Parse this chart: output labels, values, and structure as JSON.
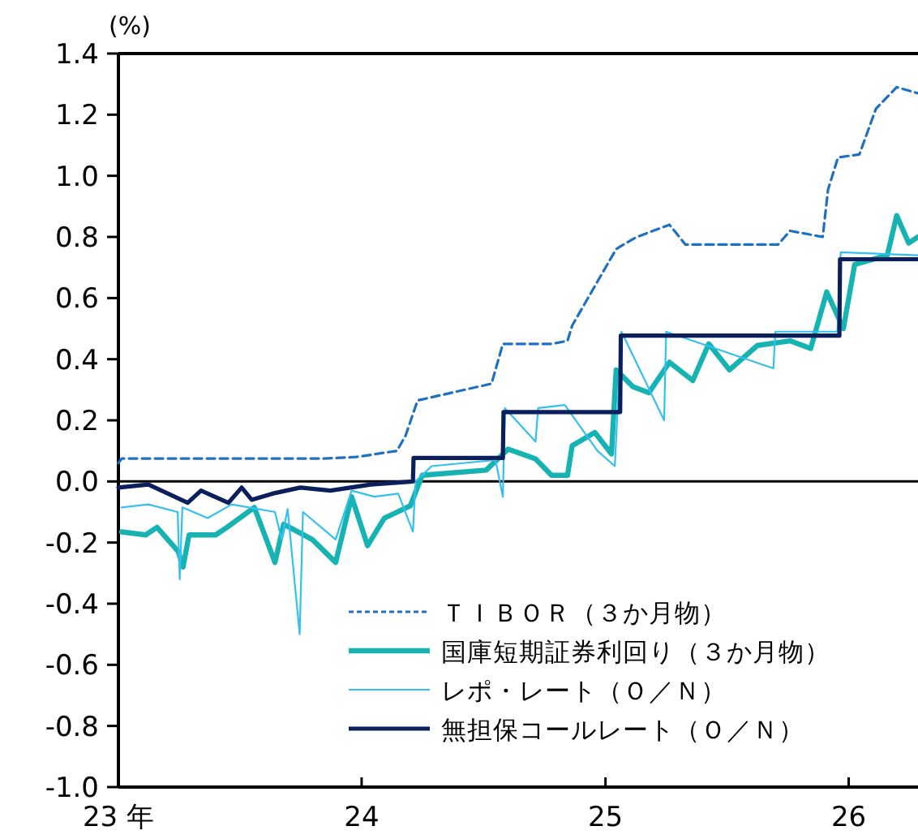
{
  "chart_data": {
    "type": "line",
    "ylabel": "(%)",
    "xlim": [
      "2023-01-01",
      "2026-04-15"
    ],
    "ylim": [
      -1.0,
      1.4
    ],
    "yticks": [
      {
        "value": -1,
        "label": "-1.0"
      },
      -0.8,
      -0.6,
      -0.4,
      -0.2,
      {
        "value": 0,
        "label": "0.0"
      },
      0.2,
      0.4,
      0.6,
      0.8,
      {
        "value": 1,
        "label": "1.0"
      },
      1.2,
      1.4
    ],
    "xticks": [
      {
        "value": "2023-01-01",
        "label": "23 年"
      },
      {
        "value": "2024-01-01",
        "label": "24"
      },
      {
        "value": "2025-01-01",
        "label": "25"
      },
      {
        "value": "2026-01-01",
        "label": "26"
      }
    ],
    "legend": "bottom right",
    "ref_lines": [
      {
        "axis": "y",
        "value": 0,
        "color": "#000000"
      }
    ],
    "series": [
      {
        "name": "ＴＩＢＯＲ（３か月物）",
        "color": "#1f70c1",
        "line_style": "dashed",
        "x": [
          "2023-01-01",
          "2023-01-06",
          "2023-11-05",
          "2023-12-24",
          "2024-02-23",
          "2024-03-07",
          "2024-03-25",
          "2024-07-14",
          "2024-07-31",
          "2024-10-12",
          "2024-11-05",
          "2024-11-12",
          "2024-12-11",
          "2025-01-17",
          "2025-01-24",
          "2025-02-17",
          "2025-04-07",
          "2025-05-01",
          "2025-09-17",
          "2025-10-05",
          "2025-11-23",
          "2025-12-01",
          "2025-12-16",
          "2026-01-17",
          "2026-02-11",
          "2026-03-14",
          "2026-04-15"
        ],
        "values": [
          0.06,
          0.075,
          0.075,
          0.08,
          0.1,
          0.15,
          0.265,
          0.32,
          0.45,
          0.45,
          0.46,
          0.51,
          0.62,
          0.76,
          0.77,
          0.8,
          0.84,
          0.775,
          0.775,
          0.82,
          0.8,
          0.955,
          1.06,
          1.07,
          1.22,
          1.29,
          1.27
        ]
      },
      {
        "name": "国庫短期証券利回り（３か月物）",
        "color": "#17b3b3",
        "x": [
          "2023-01-06",
          "2023-02-11",
          "2023-02-28",
          "2023-04-01",
          "2023-04-08",
          "2023-04-17",
          "2023-05-27",
          "2023-06-13",
          "2023-07-24",
          "2023-08-24",
          "2023-09-06",
          "2023-10-19",
          "2023-11-23",
          "2023-12-17",
          "2024-01-10",
          "2024-02-04",
          "2024-03-14",
          "2024-04-01",
          "2024-07-06",
          "2024-08-08",
          "2024-09-18",
          "2024-10-12",
          "2024-11-05",
          "2024-11-12",
          "2024-12-16",
          "2025-01-10",
          "2025-01-17",
          "2025-02-11",
          "2025-03-07",
          "2025-04-07",
          "2025-05-12",
          "2025-06-05",
          "2025-07-06",
          "2025-08-17",
          "2025-10-05",
          "2025-11-05",
          "2025-11-29",
          "2025-12-24",
          "2026-01-10",
          "2026-02-28",
          "2026-03-14",
          "2026-04-01",
          "2026-04-15"
        ],
        "values": [
          -0.165,
          -0.175,
          -0.15,
          -0.23,
          -0.28,
          -0.175,
          -0.175,
          -0.15,
          -0.085,
          -0.265,
          -0.14,
          -0.19,
          -0.265,
          -0.05,
          -0.21,
          -0.12,
          -0.08,
          0.02,
          0.037,
          0.106,
          0.074,
          0.02,
          0.02,
          0.117,
          0.16,
          0.09,
          0.365,
          0.31,
          0.29,
          0.39,
          0.33,
          0.45,
          0.365,
          0.445,
          0.46,
          0.435,
          0.62,
          0.5,
          0.71,
          0.74,
          0.87,
          0.78,
          0.8
        ]
      },
      {
        "name": "レポ・レート（Ｏ／Ｎ）",
        "color": "#33c0f0",
        "x": [
          "2023-01-06",
          "2023-02-15",
          "2023-03-31",
          "2023-04-03",
          "2023-04-07",
          "2023-05-15",
          "2023-06-20",
          "2023-08-24",
          "2023-09-03",
          "2023-09-12",
          "2023-09-30",
          "2023-10-05",
          "2023-11-23",
          "2023-12-17",
          "2024-01-20",
          "2024-02-25",
          "2024-03-18",
          "2024-03-22",
          "2024-04-15",
          "2024-06-01",
          "2024-07-20",
          "2024-07-31",
          "2024-08-03",
          "2024-09-18",
          "2024-09-22",
          "2024-11-01",
          "2024-12-20",
          "2025-01-15",
          "2025-01-25",
          "2025-03-30",
          "2025-04-02",
          "2025-09-10",
          "2025-09-13",
          "2025-12-15",
          "2025-12-20",
          "2026-04-15"
        ],
        "values": [
          -0.085,
          -0.075,
          -0.1,
          -0.32,
          -0.085,
          -0.12,
          -0.075,
          -0.1,
          -0.19,
          -0.09,
          -0.5,
          -0.1,
          -0.19,
          -0.03,
          -0.05,
          -0.04,
          -0.165,
          0.0,
          0.05,
          0.06,
          0.07,
          -0.05,
          0.24,
          0.13,
          0.24,
          0.25,
          0.1,
          0.05,
          0.49,
          0.2,
          0.49,
          0.37,
          0.49,
          0.49,
          0.75,
          0.74
        ]
      },
      {
        "name": "無担保コールレート（Ｏ／Ｎ）",
        "color": "#0a1f5c",
        "x": [
          "2023-01-01",
          "2023-02-15",
          "2023-04-15",
          "2023-05-05",
          "2023-06-15",
          "2023-07-05",
          "2023-07-20",
          "2023-08-20",
          "2023-10-01",
          "2023-11-15",
          "2024-01-15",
          "2024-03-18",
          "2024-03-19",
          "2024-07-31",
          "2024-08-01",
          "2025-01-23",
          "2025-01-24",
          "2025-12-18",
          "2025-12-19",
          "2026-04-15"
        ],
        "values": [
          -0.02,
          -0.01,
          -0.07,
          -0.03,
          -0.07,
          -0.02,
          -0.06,
          -0.04,
          -0.02,
          -0.03,
          -0.01,
          0.0,
          0.077,
          0.077,
          0.227,
          0.227,
          0.477,
          0.477,
          0.727,
          0.727
        ]
      }
    ]
  }
}
